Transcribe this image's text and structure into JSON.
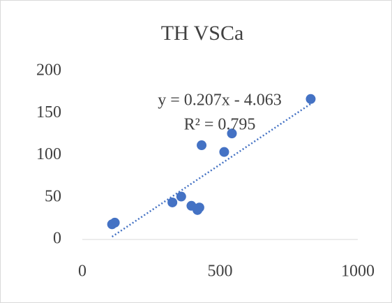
{
  "chart_data": {
    "type": "scatter",
    "title": "TH VSCa",
    "series": [
      {
        "name": "TH VSCa",
        "color": "#4472c4",
        "x": [
          108,
          118,
          327,
          359,
          396,
          418,
          425,
          433,
          515,
          543,
          829
        ],
        "values": [
          18,
          20,
          44,
          51,
          40,
          35,
          38,
          112,
          104,
          126,
          167
        ]
      }
    ],
    "trendline": {
      "style": "dotted",
      "equation": "y = 0.207x - 4.063",
      "r_squared": "R² = 0.795"
    },
    "xlim": [
      0,
      1000
    ],
    "xticks": [
      0,
      500,
      1000
    ],
    "ylim": [
      0,
      200
    ],
    "yticks": [
      0,
      50,
      100,
      150,
      200
    ],
    "grid": false
  }
}
